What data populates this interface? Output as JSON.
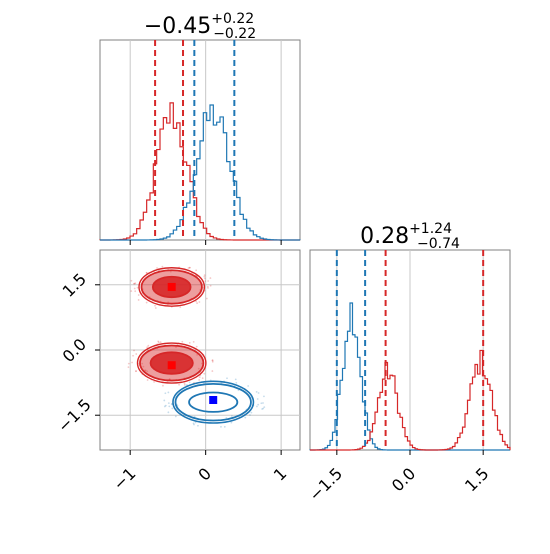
{
  "chart_data": [
    {
      "type": "histogram",
      "panel": "top-left",
      "title_main": "−0.45",
      "title_sup": "+0.22",
      "title_sub": "−0.22",
      "xlim": [
        -1.4,
        1.25
      ],
      "grid": true,
      "x_ticks": [
        -1,
        0,
        1
      ],
      "series": [
        {
          "color": "#d62728",
          "center": -0.45,
          "sd": 0.2,
          "quantile_lines": [
            -0.67,
            -0.3
          ]
        },
        {
          "color": "#1f77b4",
          "center": 0.1,
          "sd": 0.22,
          "quantile_lines": [
            -0.15,
            0.38
          ]
        }
      ]
    },
    {
      "type": "histogram",
      "panel": "bottom-right",
      "title_main": "0.28",
      "title_sup": "+1.24",
      "title_sub": "−0.74",
      "xlim": [
        -2.05,
        2.05
      ],
      "grid": true,
      "x_ticks": [
        -1.5,
        0.0,
        1.5
      ],
      "x_tick_labels": [
        "−1.5",
        "0.0",
        "1.5"
      ],
      "series": [
        {
          "color": "#1f77b4",
          "modes": [
            {
              "center": -1.2,
              "sd": 0.18,
              "weight": 1
            }
          ],
          "quantile_lines": [
            -1.5,
            -0.92
          ]
        },
        {
          "color": "#d62728",
          "modes": [
            {
              "center": -0.45,
              "sd": 0.2,
              "weight": 0.56
            },
            {
              "center": 1.45,
              "sd": 0.22,
              "weight": 0.63
            }
          ],
          "quantile_lines": [
            -0.5,
            1.5
          ]
        }
      ]
    },
    {
      "type": "contour",
      "panel": "bottom-left",
      "xlim": [
        -1.4,
        1.25
      ],
      "ylim": [
        -2.3,
        2.3
      ],
      "grid": true,
      "x_ticks": [
        -1,
        0,
        1
      ],
      "x_tick_labels": [
        "−1",
        "0",
        "1"
      ],
      "y_ticks": [
        1.5,
        0.0,
        -1.5
      ],
      "y_tick_labels": [
        "1.5",
        "0.0",
        "−1.5"
      ],
      "series": [
        {
          "color": "#d62728",
          "filled": true,
          "blobs": [
            {
              "cx": -0.45,
              "cy": 1.45,
              "rx": [
                0.25,
                0.4
              ],
              "ry": [
                0.38,
                0.62
              ],
              "marker": [
                -0.45,
                1.45
              ]
            },
            {
              "cx": -0.45,
              "cy": -0.3,
              "rx": [
                0.28,
                0.42
              ],
              "ry": [
                0.4,
                0.65
              ],
              "marker": [
                -0.45,
                -0.35
              ]
            }
          ]
        },
        {
          "color": "#1f77b4",
          "filled": false,
          "blobs": [
            {
              "cx": 0.1,
              "cy": -1.2,
              "rx": [
                0.32,
                0.5
              ],
              "ry": [
                0.36,
                0.68
              ],
              "marker": [
                0.1,
                -1.15
              ]
            }
          ]
        }
      ]
    }
  ]
}
